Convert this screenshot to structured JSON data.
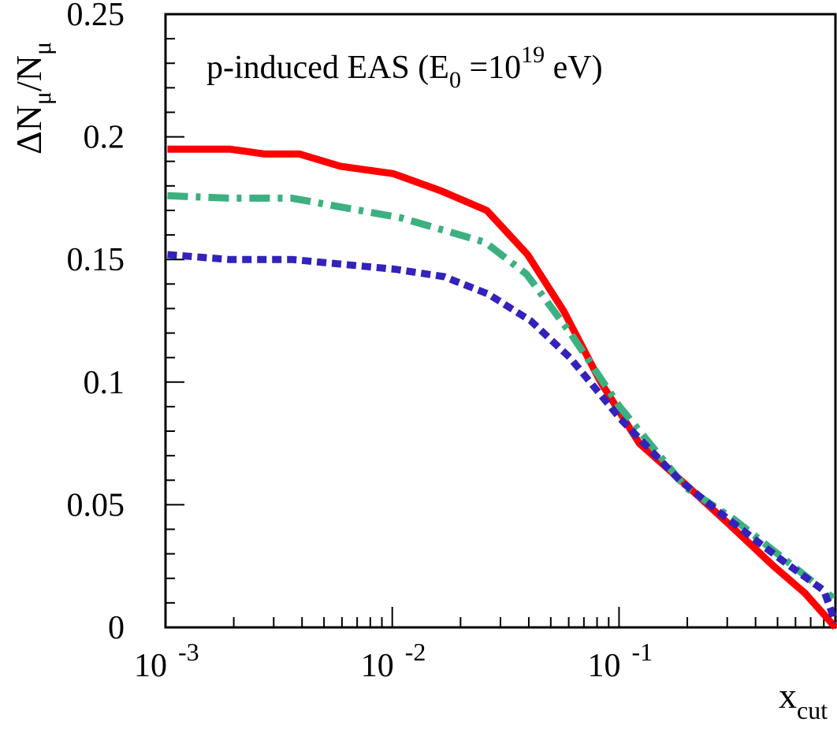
{
  "chart_data": {
    "type": "line",
    "annotation": {
      "main": "p-induced EAS  (E",
      "sub": "0",
      "mid": " =10",
      "sup": "19",
      "end": " eV)"
    },
    "xlabel": {
      "main": "x",
      "sub": "cut"
    },
    "ylabel": {
      "part1": "ΔN",
      "sub1": "μ",
      "part2": "/N",
      "sub2": "μ"
    },
    "x_scale": "log",
    "xlim": [
      0.001,
      0.9
    ],
    "ylim": [
      0,
      0.25
    ],
    "x_ticks": [
      {
        "value": 0.001,
        "base": "10",
        "exp": "-3"
      },
      {
        "value": 0.01,
        "base": "10",
        "exp": "-2"
      },
      {
        "value": 0.1,
        "base": "10",
        "exp": "-1"
      }
    ],
    "y_ticks": [
      {
        "value": 0,
        "label": "0"
      },
      {
        "value": 0.05,
        "label": "0.05"
      },
      {
        "value": 0.1,
        "label": "0.1"
      },
      {
        "value": 0.15,
        "label": "0.15"
      },
      {
        "value": 0.2,
        "label": "0.2"
      },
      {
        "value": 0.25,
        "label": "0.25"
      }
    ],
    "grid": false,
    "series": [
      {
        "color": "#ff0000",
        "style": "solid",
        "x": [
          0.00102,
          0.00192,
          0.00274,
          0.0039,
          0.0059,
          0.0101,
          0.0164,
          0.0261,
          0.0395,
          0.057,
          0.083,
          0.123,
          0.198,
          0.306,
          0.48,
          0.66,
          0.9
        ],
        "y": [
          0.195,
          0.195,
          0.193,
          0.193,
          0.188,
          0.185,
          0.178,
          0.17,
          0.152,
          0.129,
          0.1,
          0.075,
          0.058,
          0.042,
          0.025,
          0.014,
          0.0
        ]
      },
      {
        "color": "#3cb080",
        "style": "dashdot",
        "x": [
          0.00102,
          0.0019,
          0.0036,
          0.0109,
          0.0257,
          0.0391,
          0.061,
          0.1005,
          0.197,
          0.322,
          0.55,
          0.88
        ],
        "y": [
          0.176,
          0.175,
          0.175,
          0.167,
          0.157,
          0.144,
          0.12,
          0.09,
          0.057,
          0.044,
          0.027,
          0.012
        ]
      },
      {
        "color": "#3322bb",
        "style": "dotted",
        "x": [
          0.00102,
          0.0019,
          0.0036,
          0.0103,
          0.0169,
          0.0264,
          0.0408,
          0.0607,
          0.1015,
          0.185,
          0.304,
          0.53,
          0.8,
          0.9
        ],
        "y": [
          0.152,
          0.15,
          0.15,
          0.146,
          0.143,
          0.136,
          0.125,
          0.11,
          0.085,
          0.06,
          0.044,
          0.027,
          0.015,
          0.002
        ]
      }
    ]
  }
}
